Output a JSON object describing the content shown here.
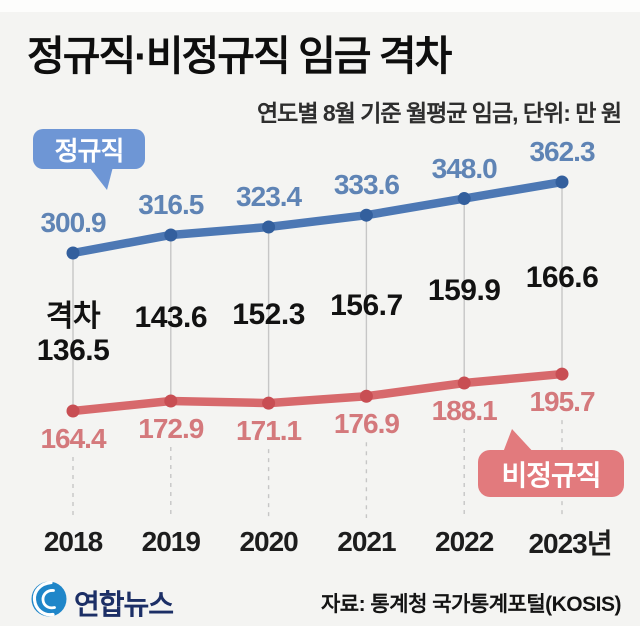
{
  "title": "정규직·비정규직 임금 격차",
  "subtitle": "연도별 8월 기준 월평균 임금, 단위: 만 원",
  "footer": {
    "logo_text": "연합뉴스",
    "source": "자료: 통계청 국가통계포털(KOSIS)"
  },
  "colors": {
    "background": "#f4f4f2",
    "regular_line": "#4d78b4",
    "regular_dot": "#335f9d",
    "regular_label": "#5f84b5",
    "regular_bubble": "#6e96d5",
    "nonregular_line": "#d7696c",
    "nonregular_dot": "#c84e53",
    "nonregular_label": "#d4797c",
    "nonregular_bubble": "#e27a7d",
    "gap_text": "#121212",
    "connector": "#c6c6c6",
    "logo_blue": "#1f86c9",
    "logo_navy": "#1c2f66"
  },
  "chart_data": {
    "type": "line",
    "title": "정규직·비정규직 임금 격차",
    "subtitle": "연도별 8월 기준 월평균 임금, 단위: 만 원",
    "categories": [
      "2018",
      "2019",
      "2020",
      "2021",
      "2022",
      "2023년"
    ],
    "series": [
      {
        "name": "정규직",
        "values": [
          300.9,
          316.5,
          323.4,
          333.6,
          348.0,
          362.3
        ],
        "color": "#4d78b4"
      },
      {
        "name": "비정규직",
        "values": [
          164.4,
          172.9,
          171.1,
          176.9,
          188.1,
          195.7
        ],
        "color": "#d7696c"
      }
    ],
    "gap": {
      "label": "격차",
      "values": [
        136.5,
        143.6,
        152.3,
        156.7,
        159.9,
        166.6
      ]
    },
    "legend_position": "inline-bubbles",
    "grid": "vertical-connectors-only",
    "value_decimals": 1
  }
}
